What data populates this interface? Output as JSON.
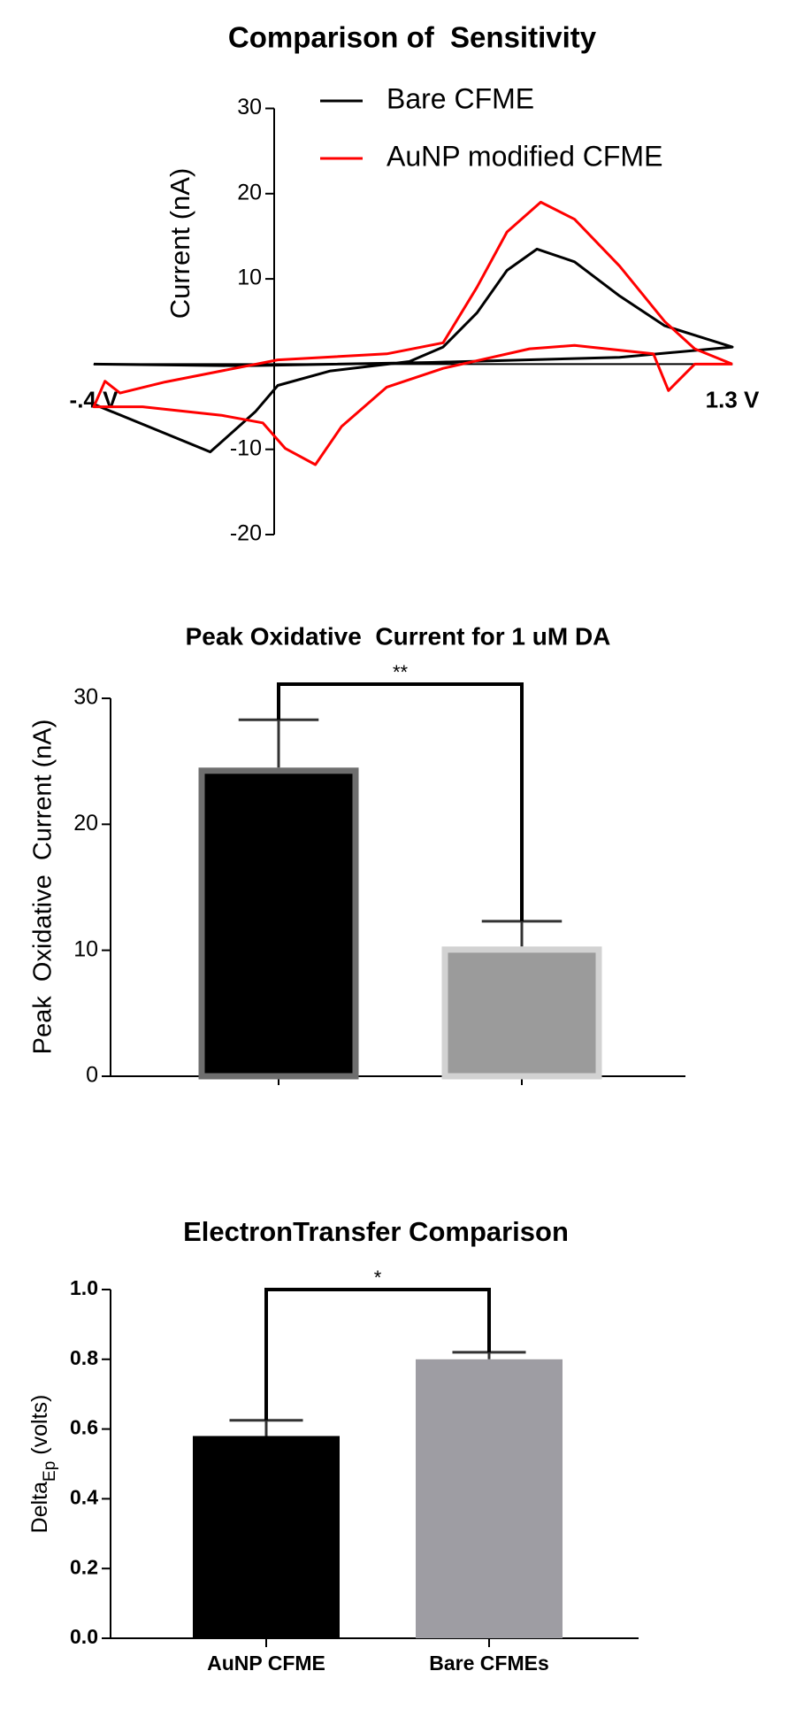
{
  "chart_data": [
    {
      "type": "line",
      "title": "Comparison of  Sensitivity",
      "ylabel": "Current (nA)",
      "xlim": [
        -0.4,
        1.3
      ],
      "xticks": [
        {
          "value": -0.4,
          "label": "-.4 V"
        },
        {
          "value": 1.3,
          "label": "1.3 V"
        }
      ],
      "ylim": [
        -20,
        30
      ],
      "yticks": [
        -20,
        -10,
        10,
        20,
        30
      ],
      "legend": "top",
      "series": [
        {
          "name": "Bare CFME",
          "color": "#000000",
          "x": [
            -0.4,
            -0.09,
            0.03,
            0.09,
            0.23,
            0.44,
            0.53,
            0.62,
            0.7,
            0.78,
            0.88,
            1.0,
            1.12,
            1.3,
            1.0,
            0.5,
            0.0,
            -0.4
          ],
          "values": [
            -4.7,
            -10.3,
            -5.6,
            -2.5,
            -0.8,
            0.3,
            2,
            6,
            11,
            13.5,
            12,
            8,
            4.5,
            2,
            0.8,
            0.2,
            -0.2,
            0
          ]
        },
        {
          "name": "AuNP modified CFME",
          "color": "#ff0000",
          "x": [
            1.3,
            1.2,
            1.13,
            1.09,
            0.88,
            0.76,
            0.53,
            0.38,
            0.26,
            0.19,
            0.11,
            0.05,
            -0.06,
            -0.27,
            -0.4,
            -0.37,
            -0.33,
            -0.21,
            0.09,
            0.38,
            0.53,
            0.62,
            0.7,
            0.79,
            0.88,
            1.0,
            1.12,
            1.2,
            1.3
          ],
          "values": [
            0,
            0,
            -3.1,
            1.2,
            2.2,
            1.8,
            -0.5,
            -2.7,
            -7.3,
            -11.8,
            -9.9,
            -6.9,
            -6,
            -5,
            -5,
            -2,
            -3.4,
            -2.1,
            0.5,
            1.2,
            2.5,
            9,
            15.5,
            19,
            17,
            11.5,
            5,
            1.8,
            0
          ]
        }
      ]
    },
    {
      "type": "bar",
      "title": "Peak Oxidative  Current for 1 uM DA",
      "ylabel": "Peak  Oxidative  Current (nA)",
      "categories": [
        null,
        null
      ],
      "values": [
        24.5,
        10.3
      ],
      "errors": [
        3.8,
        2.0
      ],
      "colors": [
        "#000000",
        "#9b9b9b"
      ],
      "edgecolors": [
        "#6e6e6e",
        "#d2d2d2"
      ],
      "ylim": [
        0,
        30
      ],
      "yticks": [
        0,
        10,
        20,
        30
      ],
      "annotation": "**"
    },
    {
      "type": "bar",
      "title": "ElectronTransfer Comparison",
      "ylabel": "Delta",
      "ylabel_sub": "Ep",
      "ylabel_unit": "(volts)",
      "categories": [
        "AuNP CFME",
        "Bare CFMEs"
      ],
      "values": [
        0.58,
        0.8
      ],
      "errors": [
        0.045,
        0.02
      ],
      "colors": [
        "#000000",
        "#9e9da3"
      ],
      "ylim": [
        0,
        1.0
      ],
      "yticks": [
        {
          "value": 0,
          "label": "0.0"
        },
        0.2,
        0.4,
        0.6,
        0.8,
        {
          "value": 1.0,
          "label": "1.0"
        }
      ],
      "annotation": "*"
    }
  ]
}
